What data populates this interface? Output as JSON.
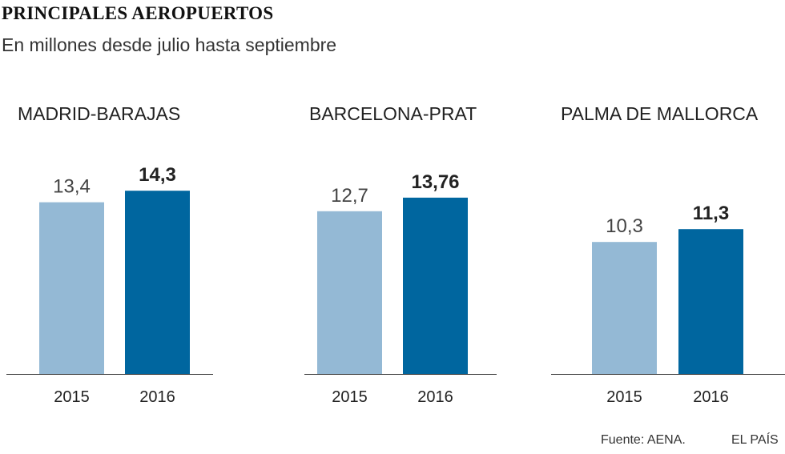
{
  "title": "PRINCIPALES AEROPUERTOS",
  "subtitle": "En millones desde julio hasta septiembre",
  "source": "Fuente: AENA.",
  "brand": "EL PAÍS",
  "colors": {
    "y2015": "#94b9d5",
    "y2016": "#00669f",
    "axis": "#333333"
  },
  "chart_data": [
    {
      "type": "bar",
      "title": "MADRID-BARAJAS",
      "categories": [
        "2015",
        "2016"
      ],
      "values": [
        13.4,
        14.3
      ],
      "value_labels": [
        "13,4",
        "14,3"
      ],
      "ylim": [
        0,
        14.3
      ]
    },
    {
      "type": "bar",
      "title": "BARCELONA-PRAT",
      "categories": [
        "2015",
        "2016"
      ],
      "values": [
        12.7,
        13.76
      ],
      "value_labels": [
        "12,7",
        "13,76"
      ],
      "ylim": [
        0,
        14.3
      ]
    },
    {
      "type": "bar",
      "title": "PALMA DE MALLORCA",
      "categories": [
        "2015",
        "2016"
      ],
      "values": [
        10.3,
        11.3
      ],
      "value_labels": [
        "10,3",
        "11,3"
      ],
      "ylim": [
        0,
        14.3
      ]
    }
  ]
}
